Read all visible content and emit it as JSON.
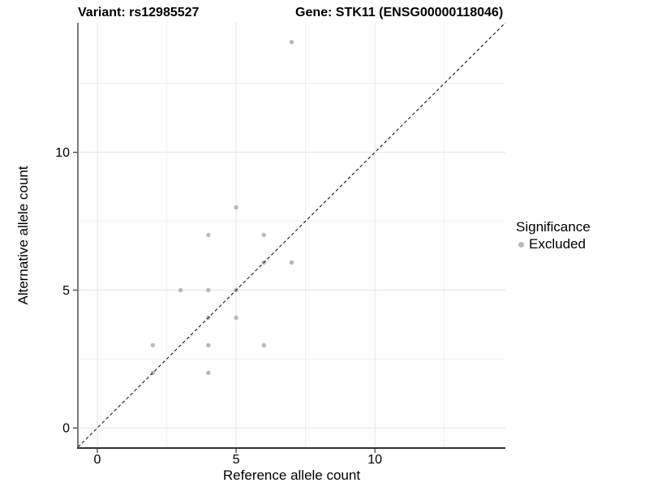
{
  "chart_data": {
    "type": "scatter",
    "title_left": "Variant: rs12985527",
    "title_right": "Gene: STK11 (ENSG00000118046)",
    "xlabel": "Reference allele count",
    "ylabel": "Alternative allele count",
    "xlim": [
      -0.7,
      14.7
    ],
    "ylim": [
      -0.7,
      14.7
    ],
    "x_major_ticks": [
      0,
      5,
      10
    ],
    "y_major_ticks": [
      0,
      5,
      10
    ],
    "x_minor_gridlines": [
      2.5,
      7.5,
      12.5
    ],
    "y_minor_gridlines": [
      2.5,
      7.5,
      12.5
    ],
    "grid": "major-and-minor",
    "legend_position": "right-middle",
    "series": [
      {
        "name": "Excluded",
        "marker": "circle",
        "color": "#b8b8b8",
        "points": [
          [
            2,
            2
          ],
          [
            2,
            3
          ],
          [
            3,
            5
          ],
          [
            4,
            2
          ],
          [
            4,
            3
          ],
          [
            4,
            4
          ],
          [
            4,
            5
          ],
          [
            4,
            7
          ],
          [
            5,
            4
          ],
          [
            5,
            5
          ],
          [
            5,
            8
          ],
          [
            6,
            3
          ],
          [
            6,
            6
          ],
          [
            6,
            7
          ],
          [
            7,
            6
          ],
          [
            7,
            14
          ]
        ]
      }
    ],
    "reference_line": {
      "type": "identity",
      "style": "dashed",
      "color": "#1a1a1a"
    }
  },
  "legend": {
    "title": "Significance",
    "items": [
      {
        "label": "Excluded",
        "color": "#b8b8b8"
      }
    ]
  },
  "colors": {
    "background": "#ffffff",
    "point": "#b8b8b8",
    "grid_major": "#e3e3e3",
    "grid_minor": "#f1f1f1",
    "axis_line": "#333333",
    "tick_mark": "#333333",
    "text": "#000000",
    "reference_line": "#1a1a1a"
  }
}
